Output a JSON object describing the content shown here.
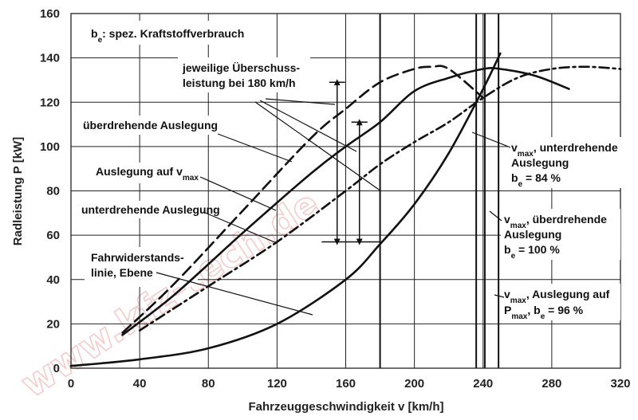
{
  "chart_data": {
    "type": "line",
    "xlabel": "Fahrzeuggeschwindigkeit v [km/h]",
    "ylabel": "Radleistung P [kW]",
    "xlim": [
      0,
      320
    ],
    "ylim": [
      0,
      160
    ],
    "xticks": [
      "0",
      "40",
      "80",
      "120",
      "160",
      "200",
      "240",
      "280",
      "320"
    ],
    "yticks": [
      "0",
      "20",
      "40",
      "60",
      "80",
      "100",
      "120",
      "140",
      "160"
    ],
    "grid": true,
    "series": [
      {
        "id": "fahrwiderstand",
        "style": "solid",
        "x": [
          0,
          40,
          80,
          120,
          160,
          180,
          200,
          220,
          240,
          250
        ],
        "y": [
          1,
          4,
          9,
          20,
          40,
          56,
          74,
          97,
          126,
          142
        ]
      },
      {
        "id": "vmax",
        "style": "solid",
        "x": [
          30,
          60,
          100,
          140,
          160,
          180,
          200,
          220,
          240,
          250,
          270,
          290
        ],
        "y": [
          15,
          33,
          61,
          88,
          100,
          111,
          125,
          131,
          135,
          135,
          132,
          126
        ]
      },
      {
        "id": "ueberdrehend",
        "style": "dashed",
        "x": [
          30,
          60,
          100,
          140,
          160,
          180,
          200,
          210,
          220,
          240
        ],
        "y": [
          16,
          38,
          71,
          104,
          117,
          129,
          135,
          136,
          135,
          122
        ]
      },
      {
        "id": "unterdrehend",
        "style": "dashdot",
        "x": [
          40,
          80,
          120,
          160,
          180,
          200,
          220,
          240,
          260,
          280,
          300,
          320
        ],
        "y": [
          17,
          37,
          57,
          80,
          92,
          102,
          111,
          122,
          131,
          135,
          136,
          135
        ]
      }
    ],
    "markers": {
      "speed_lines": [
        180,
        236,
        241,
        249
      ],
      "surplus_arrows": [
        {
          "x": 155,
          "from": 57,
          "to": 129
        },
        {
          "x": 168,
          "from": 57,
          "to": 111
        }
      ],
      "bracket_line": [
        146,
        57,
        180,
        57
      ]
    },
    "annotations": {
      "be_label": {
        "main": "b",
        "sub": "e",
        "rest": ": spez. Kraftstoffverbrauch"
      },
      "surplus": [
        "jeweilige Überschuss-",
        "leistung bei 180 km/h"
      ],
      "over_label": "überdrehende Auslegung",
      "vmax_label": {
        "main": "Auslegung auf v",
        "sub": "max"
      },
      "under_label": "unterdrehende Auslegung",
      "resist_label": [
        "Fahrwiderstands-",
        "linie, Ebene"
      ],
      "r1": {
        "l1_main": "v",
        "l1_sub": "max",
        "l1_rest": ", unterdrehende",
        "l2": "Auslegung",
        "l3_main": "b",
        "l3_sub": "e",
        "l3_rest": " = 84 %"
      },
      "r2": {
        "l1_main": "v",
        "l1_sub": "max",
        "l1_rest": ", überdrehende",
        "l2": "Auslegung",
        "l3_main": "b",
        "l3_sub": "e",
        "l3_rest": " = 100 %"
      },
      "r3": {
        "l1_main": "v",
        "l1_sub": "max",
        "l1_rest": ", Auslegung auf",
        "l2_main": "P",
        "l2_sub": "max",
        "l2_mid": ", b",
        "l2_sub2": "e",
        "l2_rest": " = 96 %"
      }
    },
    "watermark": "www.kfz-tech.de"
  }
}
